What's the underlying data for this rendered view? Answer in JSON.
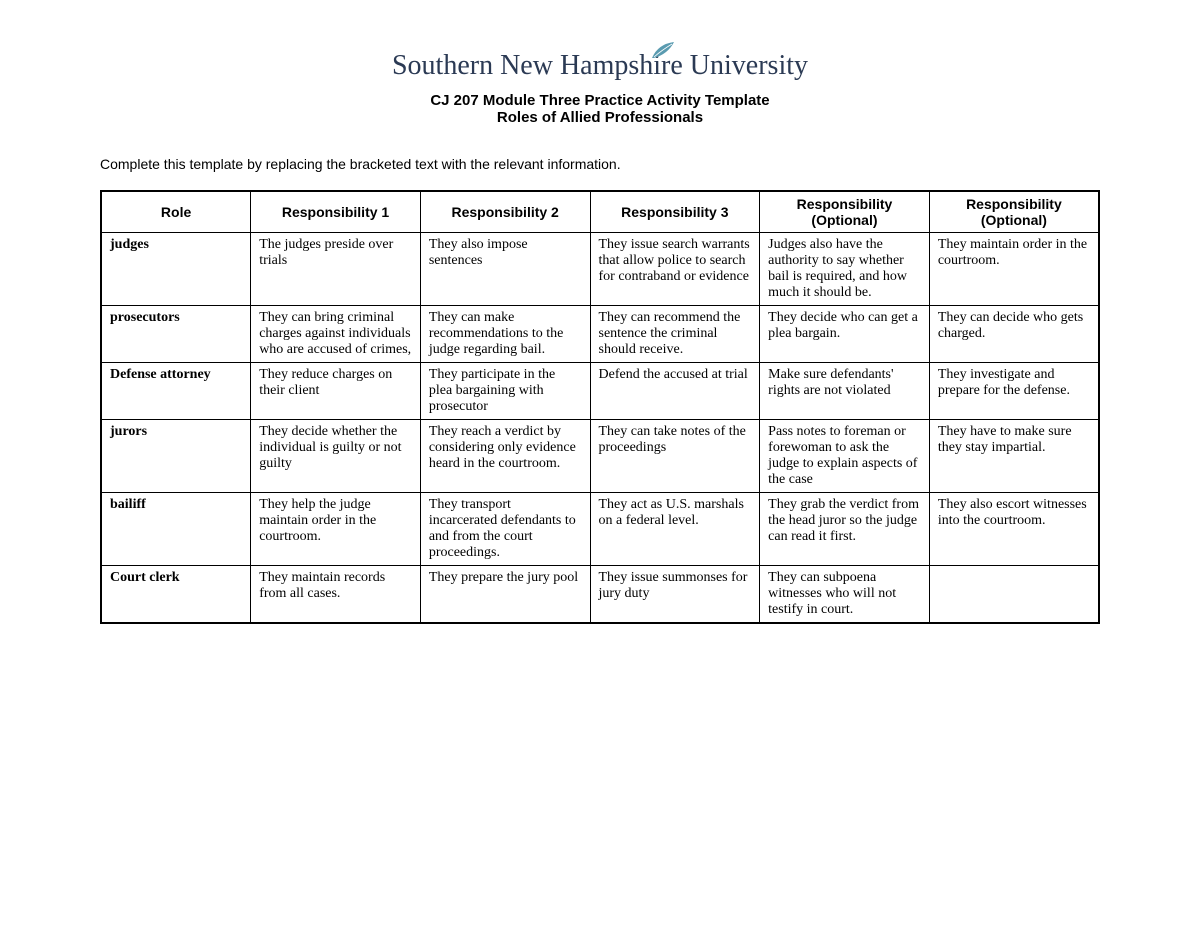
{
  "header": {
    "logo_text": "Southern New Hampshire University",
    "title_line1": "CJ 207 Module Three Practice Activity Template",
    "title_line2": "Roles of Allied Professionals",
    "leaf_color": "#5a9bb0"
  },
  "instructions": "Complete this template by replacing the bracketed text with the relevant information.",
  "table": {
    "columns": [
      "Role",
      "Responsibility 1",
      "Responsibility 2",
      "Responsibility 3",
      "Responsibility (Optional)",
      "Responsibility (Optional)"
    ],
    "rows": [
      {
        "role": "judges",
        "cells": [
          "The judges preside over trials",
          "They also impose sentences",
          "They issue search warrants that allow police to search for contraband or evidence",
          "Judges also have the authority to say whether bail is required, and how much it should be.",
          "They maintain order in the courtroom."
        ]
      },
      {
        "role": "prosecutors",
        "cells": [
          "They can bring criminal charges against individuals who are accused of crimes,",
          "They can make recommendations to the judge regarding bail.",
          "They can recommend the sentence the criminal should receive.",
          "They decide who can get a plea bargain.",
          "They can decide who gets charged."
        ]
      },
      {
        "role": "Defense attorney",
        "cells": [
          "They reduce charges on their client",
          "They participate in the plea bargaining with prosecutor",
          "Defend the accused at trial",
          "Make sure defendants' rights are not violated",
          "They investigate and prepare for the defense."
        ]
      },
      {
        "role": "jurors",
        "cells": [
          "They decide whether the individual is guilty or not guilty",
          "They reach a verdict by considering only evidence heard in the courtroom.",
          "They can take notes of the proceedings",
          "Pass notes to foreman or forewoman to ask the judge to explain aspects of the case",
          "They have to make sure they stay impartial."
        ]
      },
      {
        "role": "bailiff",
        "cells": [
          "They help the judge maintain order in the courtroom.",
          "They transport incarcerated defendants to and from the court proceedings.",
          "They act as U.S. marshals on a federal level.",
          "They grab the verdict from the head juror so the judge can read it first.",
          "They also escort witnesses into the courtroom."
        ]
      },
      {
        "role": "Court clerk",
        "cells": [
          "They maintain records from all cases.",
          "They prepare the jury pool",
          "They issue summonses for jury duty",
          "They can subpoena witnesses who will not testify in court.",
          ""
        ]
      }
    ],
    "border_color": "#000000",
    "header_fontsize": 14,
    "cell_fontsize": 14
  },
  "colors": {
    "background": "#ffffff",
    "text": "#000000",
    "logo_text": "#2b3a54"
  }
}
